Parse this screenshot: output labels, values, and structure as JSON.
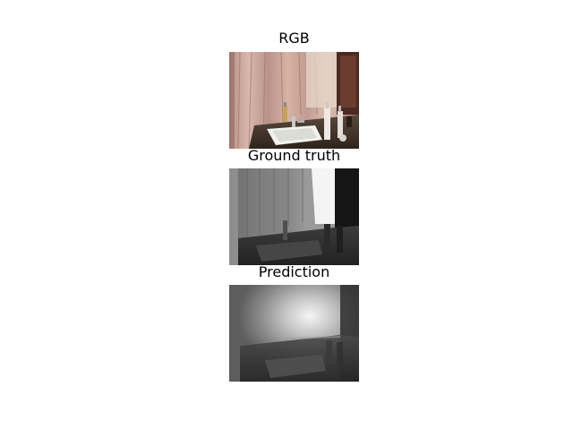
{
  "figure": {
    "panels": [
      {
        "title": "RGB",
        "image": "rgb-photo-bathroom-sink"
      },
      {
        "title": "Ground truth",
        "image": "ground-truth-depth-map"
      },
      {
        "title": "Prediction",
        "image": "predicted-depth-map"
      }
    ]
  }
}
